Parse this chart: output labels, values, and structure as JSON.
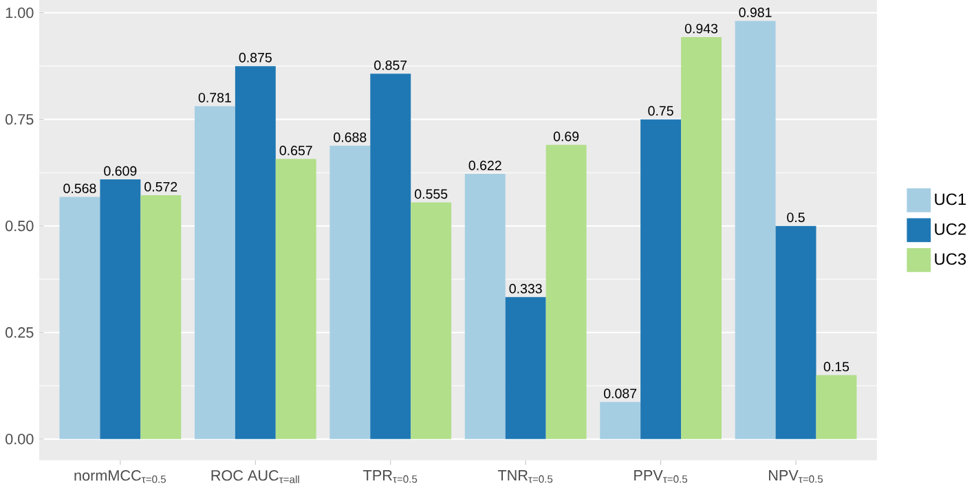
{
  "chart_data": {
    "type": "bar",
    "categories": [
      "normMCC$_{τ=0.5}$",
      "ROC AUC$_{τ=all}$",
      "TPR$_{τ=0.5}$",
      "TNR$_{τ=0.5}$",
      "PPV$_{τ=0.5}$",
      "NPV$_{τ=0.5}$"
    ],
    "series": [
      {
        "name": "UC1",
        "color": "#a6cee3",
        "values": [
          0.568,
          0.781,
          0.688,
          0.622,
          0.087,
          0.981
        ]
      },
      {
        "name": "UC2",
        "color": "#1f78b4",
        "values": [
          0.609,
          0.875,
          0.857,
          0.333,
          0.75,
          0.5
        ]
      },
      {
        "name": "UC3",
        "color": "#b2df8a",
        "values": [
          0.572,
          0.657,
          0.555,
          0.69,
          0.943,
          0.15
        ]
      }
    ],
    "ylim": [
      -0.05,
      1.03
    ],
    "yticks": [
      {
        "value": 0,
        "label": "0.00"
      },
      {
        "value": 0.25,
        "label": "0.25"
      },
      {
        "value": 0.5,
        "label": "0.50"
      },
      {
        "value": 0.75,
        "label": "0.75"
      },
      {
        "value": 1,
        "label": "1.00"
      }
    ],
    "grid": "y",
    "legend": "right",
    "data_labels": true
  }
}
